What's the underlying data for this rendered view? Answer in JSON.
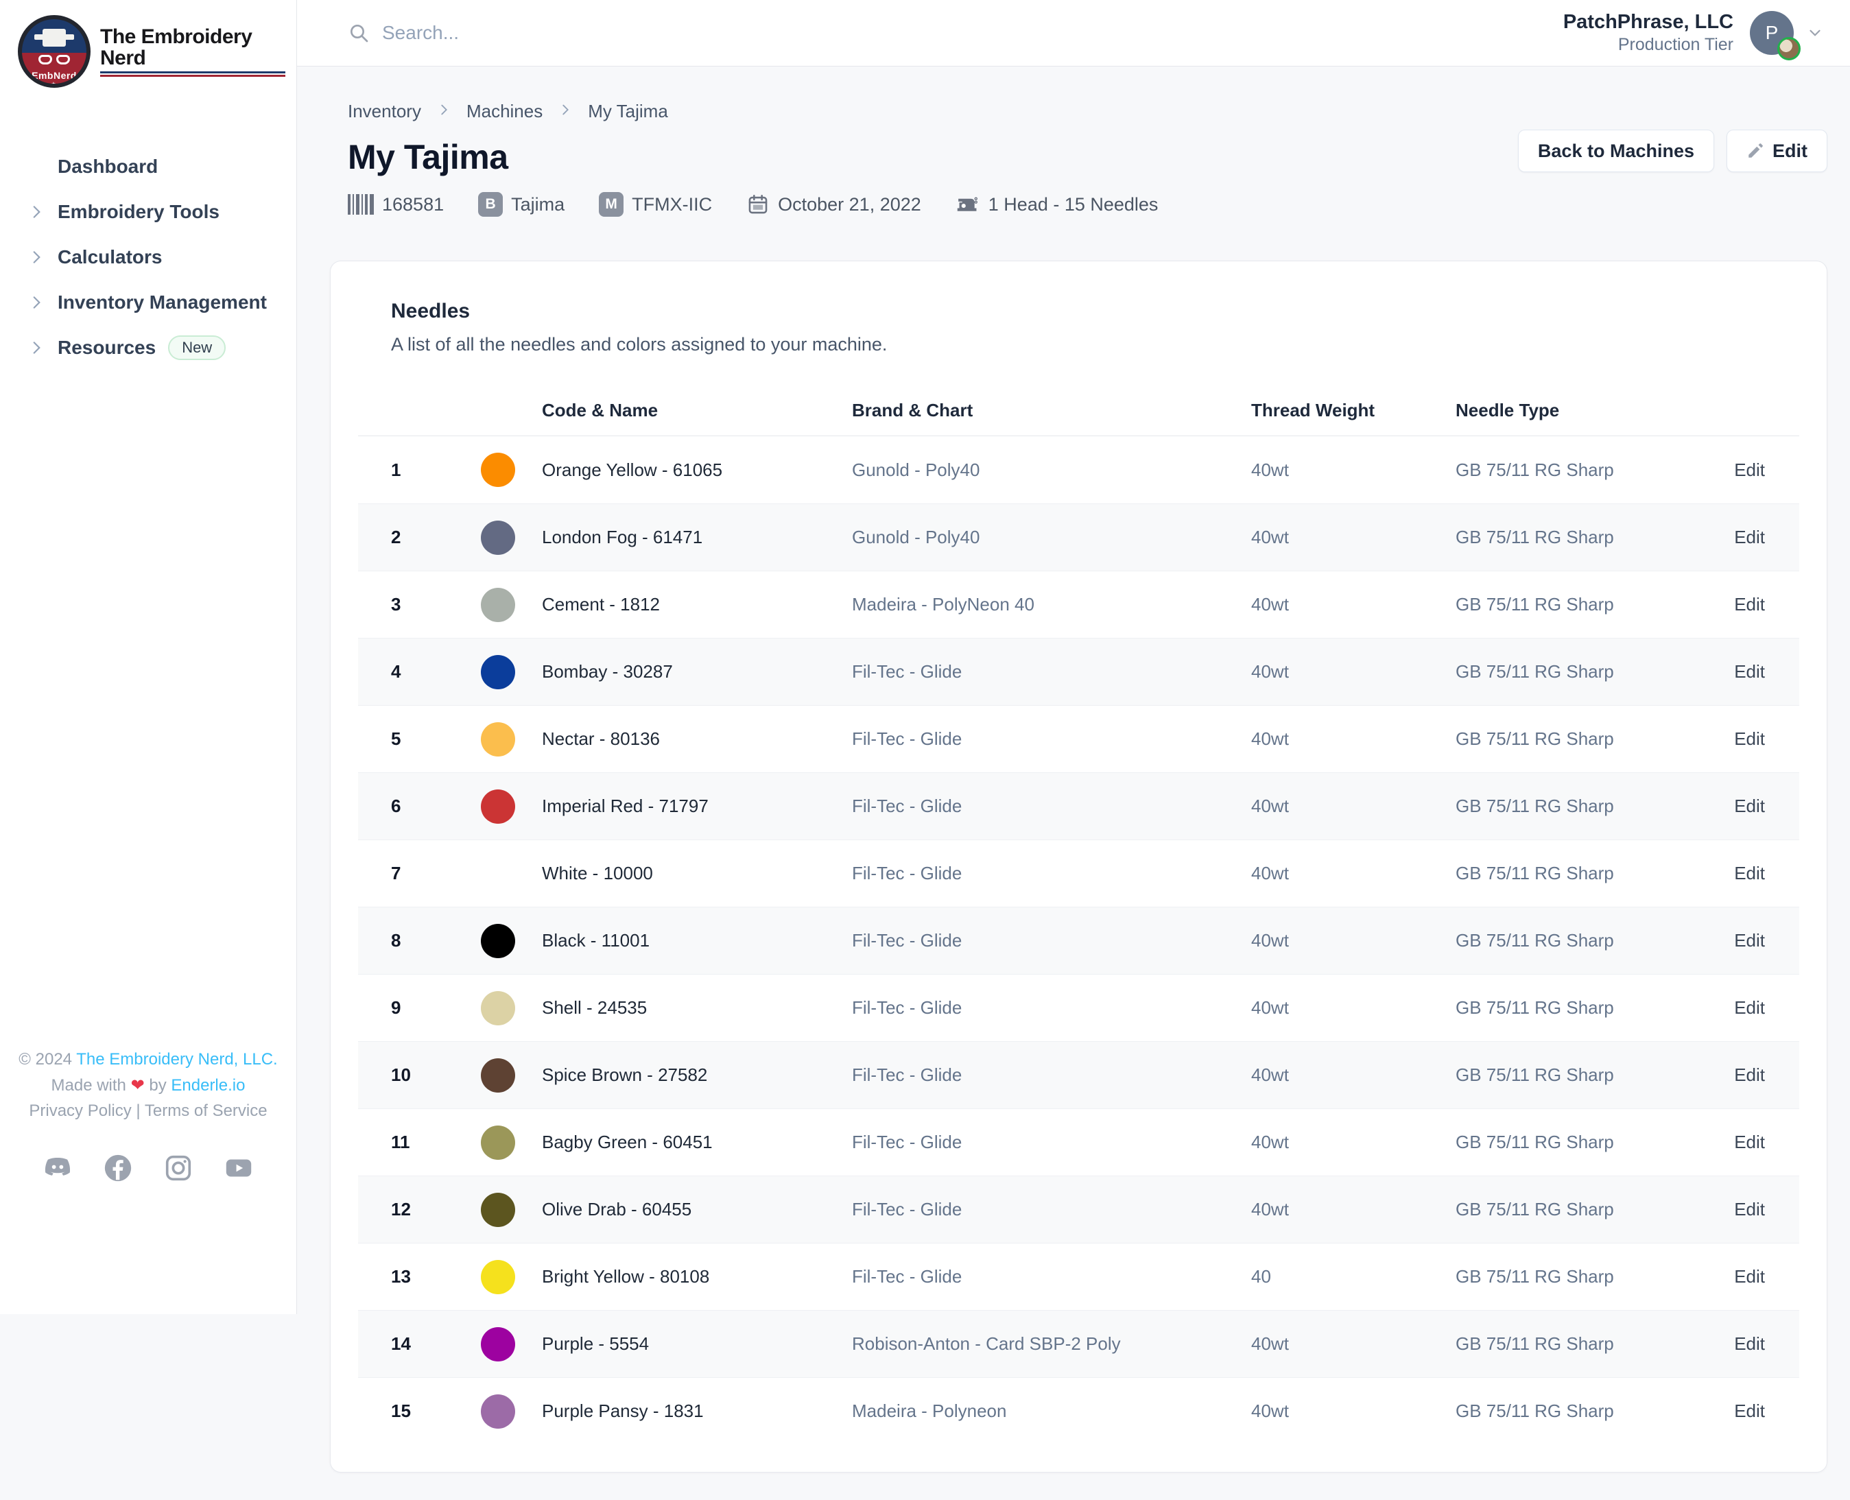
{
  "brand": {
    "wordmark": "The Embroidery Nerd",
    "badge_text": "EmbNerd",
    "badge_top_color": "#1d3a6b",
    "badge_bottom_color": "#a02533"
  },
  "header": {
    "search_placeholder": "Search...",
    "company": "PatchPhrase, LLC",
    "tier": "Production Tier",
    "avatar_initial": "P"
  },
  "sidebar": {
    "items": [
      {
        "label": "Dashboard",
        "chevron": false,
        "badge": ""
      },
      {
        "label": "Embroidery Tools",
        "chevron": true,
        "badge": ""
      },
      {
        "label": "Calculators",
        "chevron": true,
        "badge": ""
      },
      {
        "label": "Inventory Management",
        "chevron": true,
        "badge": ""
      },
      {
        "label": "Resources",
        "chevron": true,
        "badge": "New"
      }
    ],
    "footer": {
      "copyright_prefix": "© 2024",
      "company_link": "The Embroidery Nerd, LLC.",
      "made_with": "Made with",
      "heart": "❤",
      "by": "by",
      "builder_link": "Enderle.io",
      "privacy": "Privacy Policy",
      "separator": "|",
      "terms": "Terms of Service",
      "social_icons": [
        "discord-icon",
        "facebook-icon",
        "instagram-icon",
        "youtube-icon"
      ]
    }
  },
  "breadcrumb": [
    "Inventory",
    "Machines",
    "My Tajima"
  ],
  "page": {
    "title": "My Tajima",
    "meta": {
      "serial": "168581",
      "brand_badge": "B",
      "brand": "Tajima",
      "model_badge": "M",
      "model": "TFMX-IIC",
      "date": "October 21, 2022",
      "configuration": "1 Head - 15 Needles"
    },
    "actions": {
      "back": "Back to Machines",
      "edit": "Edit"
    }
  },
  "card": {
    "title": "Needles",
    "description": "A list of all the needles and colors assigned to your machine.",
    "table": {
      "headers": {
        "code_name": "Code & Name",
        "brand_chart": "Brand & Chart",
        "thread_weight": "Thread Weight",
        "needle_type": "Needle Type"
      },
      "row_action": "Edit",
      "rows": [
        {
          "number": "1",
          "color": "#FB8C00",
          "name": "Orange Yellow - 61065",
          "brand": "Gunold - Poly40",
          "weight": "40wt",
          "needle": "GB 75/11 RG Sharp"
        },
        {
          "number": "2",
          "color": "#636A83",
          "name": "London Fog - 61471",
          "brand": "Gunold - Poly40",
          "weight": "40wt",
          "needle": "GB 75/11 RG Sharp"
        },
        {
          "number": "3",
          "color": "#A9B0A9",
          "name": "Cement - 1812",
          "brand": "Madeira - PolyNeon 40",
          "weight": "40wt",
          "needle": "GB 75/11 RG Sharp"
        },
        {
          "number": "4",
          "color": "#0B3D9B",
          "name": "Bombay - 30287",
          "brand": "Fil-Tec - Glide",
          "weight": "40wt",
          "needle": "GB 75/11 RG Sharp"
        },
        {
          "number": "5",
          "color": "#FBBE4D",
          "name": "Nectar - 80136",
          "brand": "Fil-Tec - Glide",
          "weight": "40wt",
          "needle": "GB 75/11 RG Sharp"
        },
        {
          "number": "6",
          "color": "#CB3434",
          "name": "Imperial Red - 71797",
          "brand": "Fil-Tec - Glide",
          "weight": "40wt",
          "needle": "GB 75/11 RG Sharp"
        },
        {
          "number": "7",
          "color": "#FFFFFF",
          "name": "White - 10000",
          "brand": "Fil-Tec - Glide",
          "weight": "40wt",
          "needle": "GB 75/11 RG Sharp"
        },
        {
          "number": "8",
          "color": "#000000",
          "name": "Black - 11001",
          "brand": "Fil-Tec - Glide",
          "weight": "40wt",
          "needle": "GB 75/11 RG Sharp"
        },
        {
          "number": "9",
          "color": "#DCD2A5",
          "name": "Shell - 24535",
          "brand": "Fil-Tec - Glide",
          "weight": "40wt",
          "needle": "GB 75/11 RG Sharp"
        },
        {
          "number": "10",
          "color": "#5E4233",
          "name": "Spice Brown - 27582",
          "brand": "Fil-Tec - Glide",
          "weight": "40wt",
          "needle": "GB 75/11 RG Sharp"
        },
        {
          "number": "11",
          "color": "#9B9759",
          "name": "Bagby Green - 60451",
          "brand": "Fil-Tec - Glide",
          "weight": "40wt",
          "needle": "GB 75/11 RG Sharp"
        },
        {
          "number": "12",
          "color": "#5C551F",
          "name": "Olive Drab - 60455",
          "brand": "Fil-Tec - Glide",
          "weight": "40wt",
          "needle": "GB 75/11 RG Sharp"
        },
        {
          "number": "13",
          "color": "#F5E11D",
          "name": "Bright Yellow - 80108",
          "brand": "Fil-Tec - Glide",
          "weight": "40",
          "needle": "GB 75/11 RG Sharp"
        },
        {
          "number": "14",
          "color": "#9D02A0",
          "name": "Purple - 5554",
          "brand": "Robison-Anton - Card SBP-2 Poly",
          "weight": "40wt",
          "needle": "GB 75/11 RG Sharp"
        },
        {
          "number": "15",
          "color": "#9C6BA7",
          "name": "Purple Pansy - 1831",
          "brand": "Madeira - Polyneon",
          "weight": "40wt",
          "needle": "GB 75/11 RG Sharp"
        }
      ]
    }
  }
}
